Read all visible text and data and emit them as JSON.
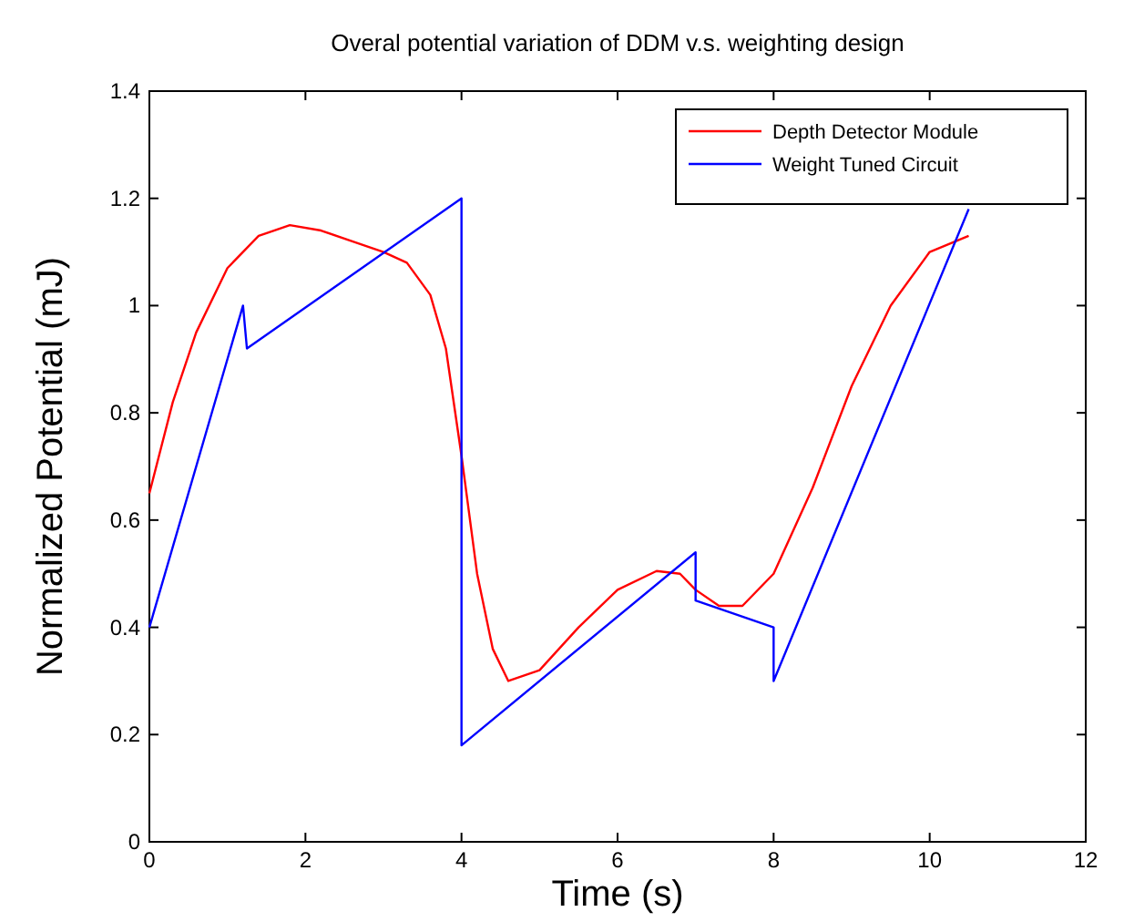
{
  "chart_data": {
    "type": "line",
    "title": "Overal potential variation of DDM v.s. weighting design",
    "xlabel": "Time (s)",
    "ylabel": "Normalized Potential (mJ)",
    "xlim": [
      0,
      12
    ],
    "xticks": [
      0,
      2,
      4,
      6,
      8,
      10,
      12
    ],
    "ylim": [
      0,
      1.4
    ],
    "yticks": [
      0,
      0.2,
      0.4,
      0.6,
      0.8,
      1,
      1.2,
      1.4
    ],
    "legend": "top right",
    "grid": false,
    "marker": "none",
    "line_style": "solid",
    "series": [
      {
        "name": "Depth Detector Module",
        "color": "#ff0000",
        "x": [
          0,
          0.3,
          0.6,
          1,
          1.4,
          1.8,
          2.2,
          2.6,
          3,
          3.3,
          3.6,
          3.8,
          4,
          4.2,
          4.4,
          4.6,
          5,
          5.5,
          6,
          6.5,
          6.8,
          7,
          7.3,
          7.6,
          8,
          8.5,
          9,
          9.5,
          10,
          10.5
        ],
        "values": [
          0.65,
          0.82,
          0.95,
          1.07,
          1.13,
          1.15,
          1.14,
          1.12,
          1.1,
          1.08,
          1.02,
          0.92,
          0.72,
          0.5,
          0.36,
          0.3,
          0.32,
          0.4,
          0.47,
          0.505,
          0.5,
          0.47,
          0.44,
          0.44,
          0.5,
          0.66,
          0.85,
          1.0,
          1.1,
          1.13
        ]
      },
      {
        "name": "Weight Tuned Circuit",
        "color": "#0000ff",
        "x": [
          0,
          1.2,
          1.25,
          4,
          4,
          7,
          7,
          8,
          8,
          10.5
        ],
        "values": [
          0.4,
          1.0,
          0.92,
          1.2,
          0.18,
          0.54,
          0.45,
          0.4,
          0.3,
          1.18
        ]
      }
    ]
  }
}
